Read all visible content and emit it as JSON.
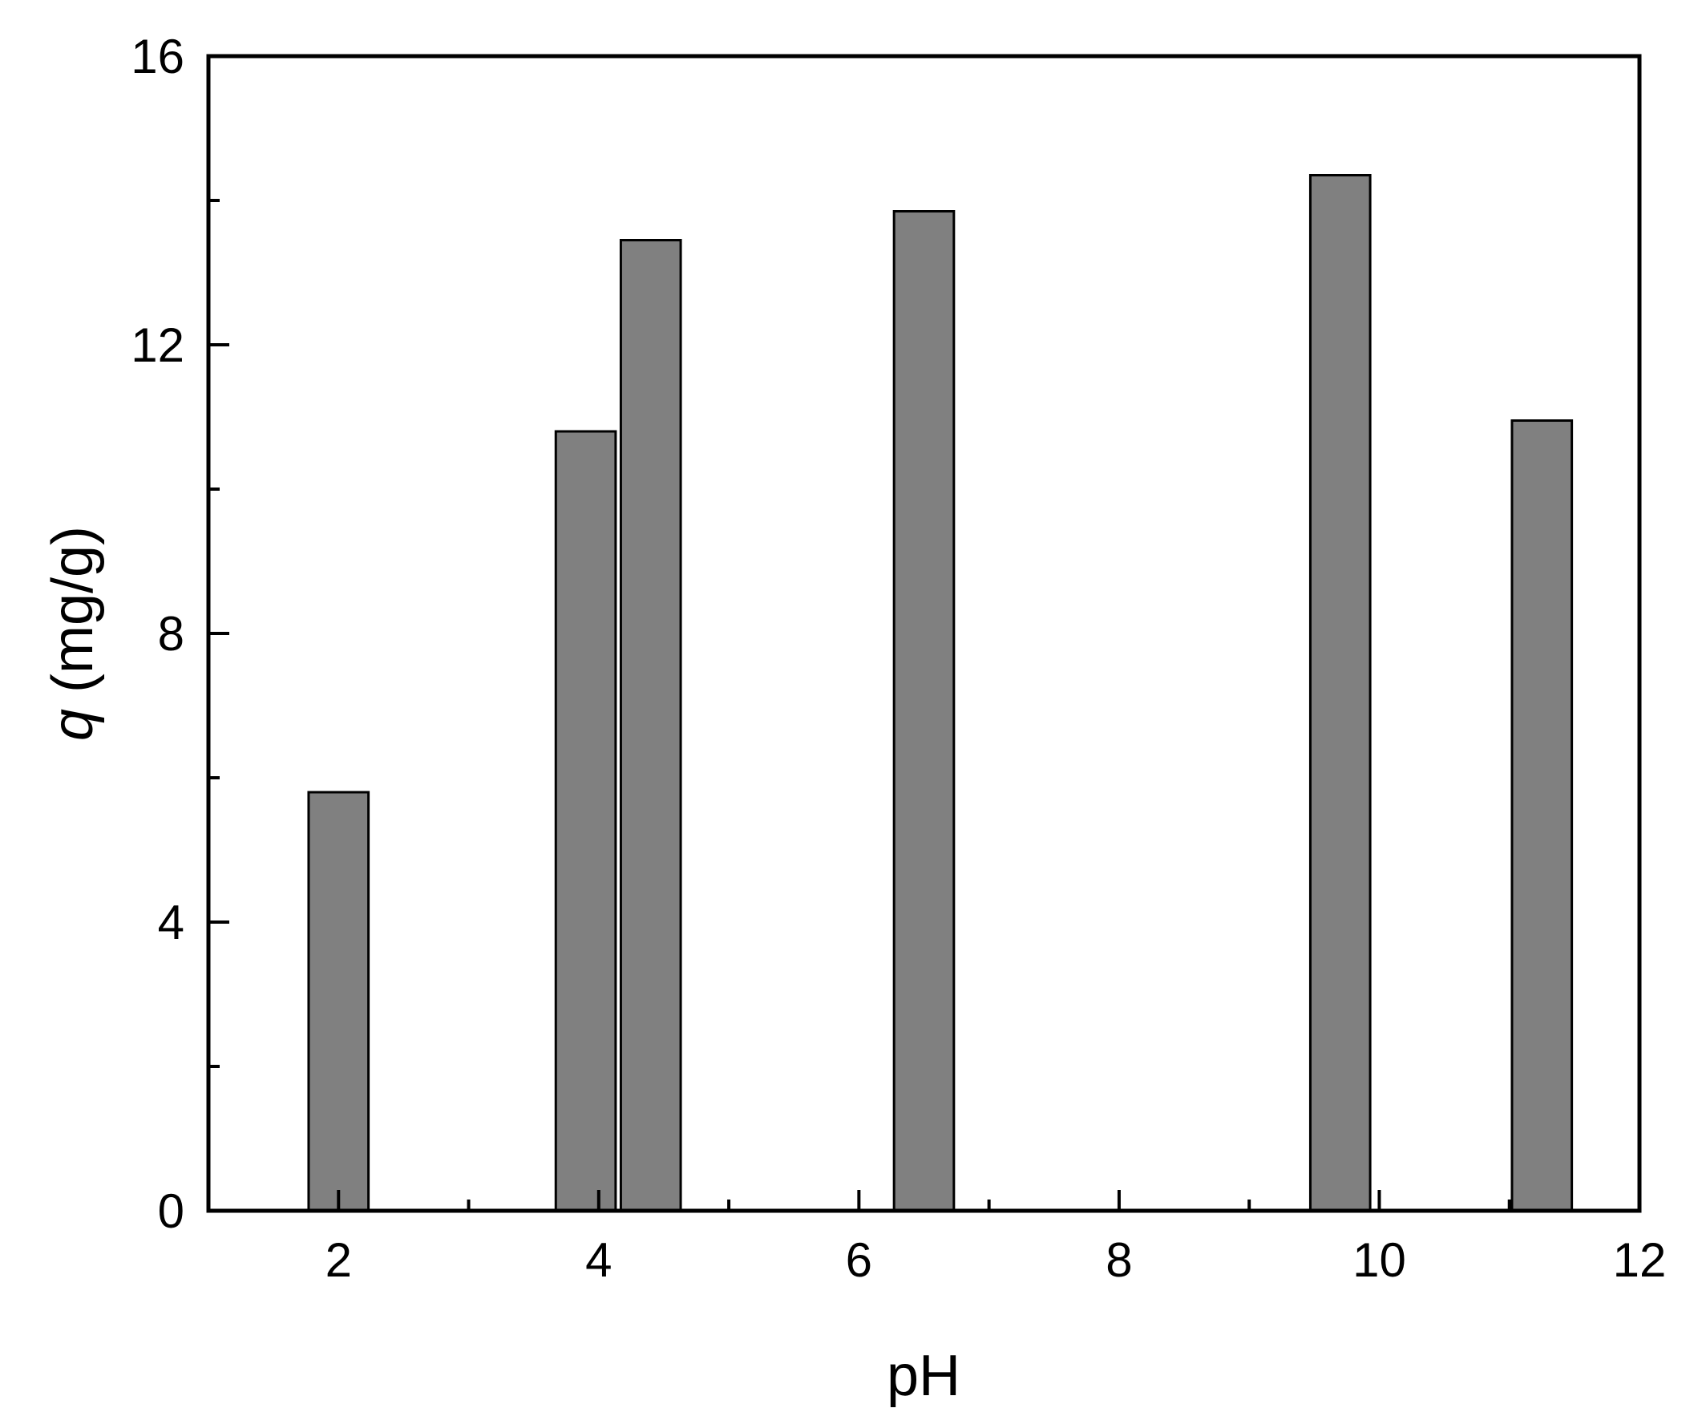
{
  "chart_data": {
    "type": "bar",
    "x": [
      2,
      3.9,
      4.4,
      6.5,
      9.7,
      11.25
    ],
    "values": [
      5.8,
      10.8,
      13.45,
      13.85,
      14.35,
      10.95
    ],
    "xlabel_var": "",
    "xlabel": "pH",
    "ylabel_var": "q",
    "ylabel_unit": " (mg/g)",
    "xlim": [
      1,
      12
    ],
    "ylim": [
      0,
      16
    ],
    "x_major_ticks": [
      2,
      4,
      6,
      8,
      10,
      12
    ],
    "x_major_tick_labels": [
      "2",
      "4",
      "6",
      "8",
      "10",
      "12"
    ],
    "x_minor_ticks": [
      3,
      5,
      7,
      9,
      11
    ],
    "y_major_ticks": [
      0,
      4,
      8,
      12,
      16
    ],
    "y_major_tick_labels": [
      "0",
      "4",
      "8",
      "12",
      "16"
    ],
    "y_minor_ticks": [
      2,
      6,
      10,
      14
    ],
    "bar_width_units": 0.46,
    "grid": false,
    "legend": "none",
    "colors": {
      "bar_fill": "#808080",
      "bar_stroke": "#000000",
      "axis": "#000000"
    }
  }
}
